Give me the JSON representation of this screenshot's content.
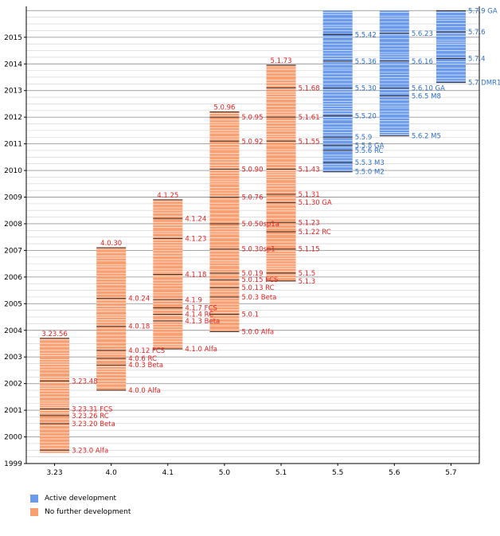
{
  "chart_data": {
    "type": "bar",
    "categories": [
      "3.23",
      "4.0",
      "4.1",
      "5.0",
      "5.1",
      "5.5",
      "5.6",
      "5.7"
    ],
    "y_ticks": [
      "1999",
      "2000",
      "2001",
      "2002",
      "2003",
      "2004",
      "2005",
      "2006",
      "2007",
      "2008",
      "2009",
      "2010",
      "2011",
      "2012",
      "2013",
      "2014",
      "2015"
    ],
    "ylim": [
      1999,
      2016.1
    ],
    "grid": true,
    "legend": {
      "placement": "bottom-left",
      "items": [
        {
          "label": "Active development",
          "color": "#6b9bea"
        },
        {
          "label": "No further development",
          "color": "#f9a073"
        }
      ]
    },
    "series": [
      {
        "category": "3.23",
        "status": "No further development",
        "start": 1999.4,
        "end": 2003.7,
        "labels": [
          {
            "text": "3.23.56",
            "y": 2003.7
          },
          {
            "text": "3.23.48",
            "y": 2002.1
          },
          {
            "text": "3.23.31 FCS",
            "y": 2001.05
          },
          {
            "text": "3.23.26 RC",
            "y": 2000.8
          },
          {
            "text": "3.23.20 Beta",
            "y": 2000.5
          },
          {
            "text": "3.23.0 Alfa",
            "y": 1999.5
          }
        ]
      },
      {
        "category": "4.0",
        "status": "No further development",
        "start": 2001.75,
        "end": 2007.1,
        "labels": [
          {
            "text": "4.0.30",
            "y": 2007.1
          },
          {
            "text": "4.0.24",
            "y": 2005.2
          },
          {
            "text": "4.0.18",
            "y": 2004.15
          },
          {
            "text": "4.0.12 FCS",
            "y": 2003.25
          },
          {
            "text": "4.0.6 RC",
            "y": 2002.95
          },
          {
            "text": "4.0.3 Beta",
            "y": 2002.7
          },
          {
            "text": "4.0.0 Alfa",
            "y": 2001.75
          }
        ]
      },
      {
        "category": "4.1",
        "status": "No further development",
        "start": 2003.3,
        "end": 2008.9,
        "labels": [
          {
            "text": "4.1.25",
            "y": 2008.9
          },
          {
            "text": "4.1.24",
            "y": 2008.2
          },
          {
            "text": "4.1.23",
            "y": 2007.45
          },
          {
            "text": "4.1.18",
            "y": 2006.1
          },
          {
            "text": "4.1.9",
            "y": 2005.15
          },
          {
            "text": "4.1.7 FCS",
            "y": 2004.85
          },
          {
            "text": "4.1.4 RC",
            "y": 2004.6
          },
          {
            "text": "4.1.3 Beta",
            "y": 2004.35
          },
          {
            "text": "4.1.0 Alfa",
            "y": 2003.3
          }
        ]
      },
      {
        "category": "5.0",
        "status": "No further development",
        "start": 2003.95,
        "end": 2012.2,
        "labels": [
          {
            "text": "5.0.96",
            "y": 2012.2
          },
          {
            "text": "5.0.95",
            "y": 2012.0
          },
          {
            "text": "5.0.92",
            "y": 2011.1
          },
          {
            "text": "5.0.90",
            "y": 2010.05
          },
          {
            "text": "5.0.76",
            "y": 2009.0
          },
          {
            "text": "5.0.50sp1a",
            "y": 2008.0
          },
          {
            "text": "5.0.30sp1",
            "y": 2007.05
          },
          {
            "text": "5.0.19",
            "y": 2006.15
          },
          {
            "text": "5.0.15 FCS",
            "y": 2005.9
          },
          {
            "text": "5.0.13 RC",
            "y": 2005.6
          },
          {
            "text": "5.0.3 Beta",
            "y": 2005.25
          },
          {
            "text": "5.0.1",
            "y": 2004.6
          },
          {
            "text": "5.0.0 Alfa",
            "y": 2003.95
          }
        ]
      },
      {
        "category": "5.1",
        "status": "No further development",
        "start": 2005.85,
        "end": 2013.95,
        "labels": [
          {
            "text": "5.1.73",
            "y": 2013.95
          },
          {
            "text": "5.1.68",
            "y": 2013.1
          },
          {
            "text": "5.1.61",
            "y": 2012.0
          },
          {
            "text": "5.1.55",
            "y": 2011.1
          },
          {
            "text": "5.1.43",
            "y": 2010.05
          },
          {
            "text": "5.1.31",
            "y": 2009.1
          },
          {
            "text": "5.1.30 GA",
            "y": 2008.8
          },
          {
            "text": "5.1.23",
            "y": 2008.05
          },
          {
            "text": "5.1.22 RC",
            "y": 2007.7
          },
          {
            "text": "5.1.15",
            "y": 2007.05
          },
          {
            "text": "5.1.5",
            "y": 2006.15
          },
          {
            "text": "5.1.3",
            "y": 2005.85
          }
        ]
      },
      {
        "category": "5.5",
        "status": "Active development",
        "start": 2009.95,
        "end": 2016.0,
        "labels": [
          {
            "text": "5.5.42",
            "y": 2015.1
          },
          {
            "text": "5.5.36",
            "y": 2014.1
          },
          {
            "text": "5.5.30",
            "y": 2013.1
          },
          {
            "text": "5.5.20",
            "y": 2012.05
          },
          {
            "text": "5.5.9",
            "y": 2011.25
          },
          {
            "text": "5.5.8 GA",
            "y": 2010.95
          },
          {
            "text": "5.5.6 RC",
            "y": 2010.75
          },
          {
            "text": "5.5.3 M3",
            "y": 2010.3
          },
          {
            "text": "5.5.0 M2",
            "y": 2009.95
          }
        ]
      },
      {
        "category": "5.6",
        "status": "Active development",
        "start": 2011.3,
        "end": 2016.0,
        "labels": [
          {
            "text": "5.6.23",
            "y": 2015.15
          },
          {
            "text": "5.6.16",
            "y": 2014.1
          },
          {
            "text": "5.6.10 GA",
            "y": 2013.1
          },
          {
            "text": "5.6.5 M8",
            "y": 2012.8
          },
          {
            "text": "5.6.2 M5",
            "y": 2011.3
          }
        ]
      },
      {
        "category": "5.7",
        "status": "Active development",
        "start": 2013.3,
        "end": 2016.0,
        "labels": [
          {
            "text": "5.7.9 GA",
            "y": 2016.0
          },
          {
            "text": "5.7.6",
            "y": 2015.2
          },
          {
            "text": "5.7.4",
            "y": 2014.2
          },
          {
            "text": "5.7 DMR1",
            "y": 2013.3
          }
        ]
      }
    ]
  }
}
